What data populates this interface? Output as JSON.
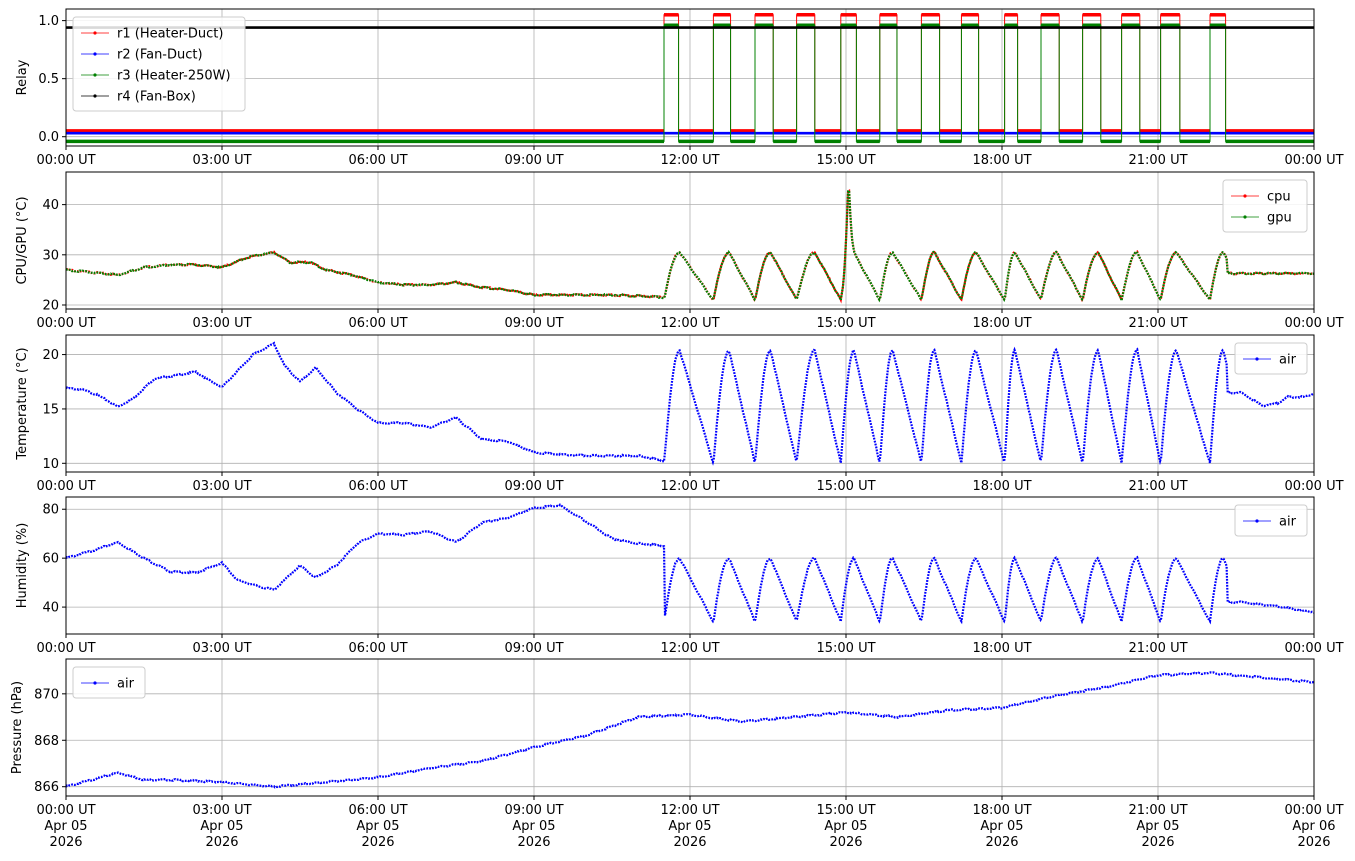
{
  "chart_data": [
    {
      "type": "line",
      "ylabel": "Relay",
      "ylim": [
        -0.08,
        1.1
      ],
      "yticks": [
        0.0,
        0.5,
        1.0
      ],
      "ytick_labels": [
        "0.0",
        "0.5",
        "1.0"
      ],
      "grid": true,
      "legend_position": "upper-left",
      "x_ticks": [
        "00:00 UT",
        "03:00 UT",
        "06:00 UT",
        "09:00 UT",
        "12:00 UT",
        "15:00 UT",
        "18:00 UT",
        "21:00 UT",
        "00:00 UT"
      ],
      "cycles_on_hours": [
        [
          11.5,
          11.78
        ],
        [
          12.45,
          12.78
        ],
        [
          13.25,
          13.6
        ],
        [
          14.05,
          14.4
        ],
        [
          14.9,
          15.2
        ],
        [
          15.65,
          15.98
        ],
        [
          16.45,
          16.8
        ],
        [
          17.22,
          17.55
        ],
        [
          18.05,
          18.3
        ],
        [
          18.75,
          19.1
        ],
        [
          19.55,
          19.9
        ],
        [
          20.3,
          20.65
        ],
        [
          21.05,
          21.42
        ],
        [
          22.0,
          22.3
        ]
      ],
      "series": [
        {
          "name": "r1 (Heater-Duct)",
          "color": "#ff0000",
          "off_value": 0.05,
          "on_value": 1.05,
          "switching": true
        },
        {
          "name": "r2 (Fan-Duct)",
          "color": "#0000ff",
          "off_value": 0.03,
          "on_value": 0.03,
          "switching": false
        },
        {
          "name": "r3 (Heater-250W)",
          "color": "#008000",
          "off_value": -0.04,
          "on_value": 0.96,
          "switching": true
        },
        {
          "name": "r4 (Fan-Box)",
          "color": "#000000",
          "off_value": 0.94,
          "on_value": 0.94,
          "switching": false
        }
      ]
    },
    {
      "type": "line",
      "ylabel": "CPU/GPU (°C)",
      "ylim": [
        19.2,
        46.5
      ],
      "yticks": [
        20,
        30,
        40
      ],
      "ytick_labels": [
        "20",
        "30",
        "40"
      ],
      "grid": true,
      "legend_position": "upper-right",
      "x_ticks": [
        "00:00 UT",
        "03:00 UT",
        "06:00 UT",
        "09:00 UT",
        "12:00 UT",
        "15:00 UT",
        "18:00 UT",
        "21:00 UT",
        "00:00 UT"
      ],
      "x_hours": [
        0,
        0.5,
        1.0,
        1.5,
        2.0,
        2.5,
        3.0,
        3.5,
        4.0,
        4.3,
        4.7,
        5.0,
        5.5,
        6.0,
        6.5,
        7.0,
        7.5,
        8.0,
        8.5,
        9.0,
        9.5,
        10.0,
        10.5,
        11.0,
        11.5
      ],
      "series": [
        {
          "name": "cpu",
          "color": "#ff0000",
          "values": [
            27.0,
            26.5,
            26.0,
            27.5,
            28.0,
            28.0,
            27.5,
            29.5,
            30.5,
            28.5,
            28.5,
            27.0,
            26.0,
            24.5,
            24.0,
            24.0,
            24.5,
            23.5,
            23.0,
            22.0,
            22.0,
            22.0,
            22.0,
            21.8,
            21.5
          ]
        },
        {
          "name": "gpu",
          "color": "#008000",
          "values": [
            27.0,
            26.5,
            26.0,
            27.5,
            28.0,
            28.0,
            27.5,
            29.5,
            30.5,
            28.5,
            28.5,
            27.0,
            26.0,
            24.5,
            24.0,
            24.0,
            24.5,
            23.5,
            23.0,
            22.0,
            22.0,
            22.0,
            22.0,
            21.8,
            21.5
          ]
        }
      ],
      "cycle_peak_hours": [
        11.8,
        12.75,
        13.55,
        14.4,
        15.15,
        15.9,
        16.7,
        17.5,
        18.25,
        19.05,
        19.85,
        20.6,
        21.35,
        22.25
      ],
      "cycle_trough_hours": [
        11.5,
        12.45,
        13.25,
        14.05,
        14.9,
        15.65,
        16.45,
        17.22,
        18.05,
        18.75,
        19.55,
        20.3,
        21.05,
        22.0
      ],
      "cycle_peak_value": 30.5,
      "cycle_trough_value": 21.0,
      "spike_hour": 15.05,
      "spike_value": 45.5,
      "tail_value": 26.3
    },
    {
      "type": "scatter",
      "ylabel": "Temperature (°C)",
      "ylim": [
        9.2,
        21.8
      ],
      "yticks": [
        10,
        15,
        20
      ],
      "ytick_labels": [
        "10",
        "15",
        "20"
      ],
      "grid": true,
      "legend_position": "upper-right",
      "x_ticks": [
        "00:00 UT",
        "03:00 UT",
        "06:00 UT",
        "09:00 UT",
        "12:00 UT",
        "15:00 UT",
        "18:00 UT",
        "21:00 UT",
        "00:00 UT"
      ],
      "x_hours": [
        0,
        0.3,
        0.6,
        1.0,
        1.3,
        1.7,
        2.0,
        2.5,
        2.8,
        3.0,
        3.3,
        3.6,
        4.0,
        4.2,
        4.5,
        4.8,
        5.2,
        5.6,
        6.0,
        6.5,
        7.0,
        7.5,
        8.0,
        8.5,
        9.0,
        9.5,
        10.0,
        10.5,
        11.0,
        11.5
      ],
      "series": [
        {
          "name": "air",
          "color": "#0000ff",
          "values": [
            16.9,
            16.8,
            16.3,
            15.2,
            16.0,
            17.8,
            18.0,
            18.4,
            17.5,
            17.0,
            18.5,
            20.0,
            21.0,
            19.0,
            17.5,
            18.8,
            16.5,
            15.0,
            13.7,
            13.7,
            13.3,
            14.2,
            12.2,
            12.0,
            11.0,
            10.8,
            10.7,
            10.7,
            10.7,
            10.2
          ]
        }
      ],
      "cycle_peak_hours": [
        11.8,
        12.75,
        13.55,
        14.4,
        15.15,
        15.9,
        16.7,
        17.5,
        18.25,
        19.05,
        19.85,
        20.6,
        21.35,
        22.25
      ],
      "cycle_trough_hours": [
        11.5,
        12.45,
        13.25,
        14.05,
        14.9,
        15.65,
        16.45,
        17.22,
        18.05,
        18.75,
        19.55,
        20.3,
        21.05,
        22.0
      ],
      "cycle_peak_value": 20.4,
      "cycle_trough_value": 10.0,
      "tail_values": [
        16.5,
        15.3,
        15.5,
        16.1,
        16.1,
        16.4
      ],
      "tail_hours": [
        22.6,
        23.0,
        23.3,
        23.5,
        23.8,
        24.0
      ]
    },
    {
      "type": "scatter",
      "ylabel": "Humidity (%)",
      "ylim": [
        29,
        85
      ],
      "yticks": [
        40,
        60,
        80
      ],
      "ytick_labels": [
        "40",
        "60",
        "80"
      ],
      "grid": true,
      "legend_position": "upper-right",
      "x_ticks": [
        "00:00 UT",
        "03:00 UT",
        "06:00 UT",
        "09:00 UT",
        "12:00 UT",
        "15:00 UT",
        "18:00 UT",
        "21:00 UT",
        "00:00 UT"
      ],
      "x_hours": [
        0,
        0.5,
        1.0,
        1.5,
        2.0,
        2.5,
        3.0,
        3.3,
        3.7,
        4.0,
        4.5,
        4.8,
        5.2,
        5.6,
        6.0,
        6.5,
        7.0,
        7.5,
        8.0,
        8.5,
        9.0,
        9.5,
        10.0,
        10.5,
        11.0,
        11.5
      ],
      "series": [
        {
          "name": "air",
          "color": "#0000ff",
          "values": [
            60.0,
            63.0,
            66.5,
            60.0,
            54.5,
            54.0,
            58.0,
            51.0,
            48.5,
            47.0,
            57.0,
            52.0,
            57.0,
            66.0,
            70.0,
            69.5,
            71.0,
            66.5,
            74.5,
            76.5,
            80.5,
            81.5,
            75.0,
            68.0,
            66.0,
            65.0
          ]
        }
      ],
      "cycle_peak_hours": [
        11.8,
        12.75,
        13.55,
        14.4,
        15.15,
        15.9,
        16.7,
        17.5,
        18.25,
        19.05,
        19.85,
        20.6,
        21.35,
        22.25
      ],
      "cycle_trough_hours": [
        11.5,
        12.45,
        13.25,
        14.05,
        14.9,
        15.65,
        16.45,
        17.22,
        18.05,
        18.75,
        19.55,
        20.3,
        21.05,
        22.0
      ],
      "cycle_peak_value": 60.0,
      "cycle_trough_value": 34.0,
      "tail_values": [
        42.0,
        41.0,
        40.0,
        38.5,
        38.0
      ],
      "tail_hours": [
        22.6,
        23.0,
        23.4,
        23.8,
        24.0
      ]
    },
    {
      "type": "scatter",
      "ylabel": "Pressure (hPa)",
      "ylim": [
        865.6,
        871.5
      ],
      "yticks": [
        866,
        868,
        870
      ],
      "ytick_labels": [
        "866",
        "868",
        "870"
      ],
      "grid": true,
      "legend_position": "upper-left",
      "x_ticks": [
        "00:00 UT",
        "03:00 UT",
        "06:00 UT",
        "09:00 UT",
        "12:00 UT",
        "15:00 UT",
        "18:00 UT",
        "21:00 UT",
        "00:00 UT"
      ],
      "x_date_labels": [
        "Apr 05",
        "Apr 05",
        "Apr 05",
        "Apr 05",
        "Apr 05",
        "Apr 05",
        "Apr 05",
        "Apr 05",
        "Apr 06"
      ],
      "x_year_labels": [
        "2026",
        "2026",
        "2026",
        "2026",
        "2026",
        "2026",
        "2026",
        "2026",
        "2026"
      ],
      "x_hours": [
        0,
        0.5,
        1.0,
        1.5,
        2.0,
        3.0,
        4.0,
        5.0,
        6.0,
        7.0,
        8.0,
        9.0,
        10.0,
        11.0,
        12.0,
        13.0,
        14.0,
        15.0,
        16.0,
        17.0,
        18.0,
        19.0,
        20.0,
        21.0,
        22.0,
        23.0,
        24.0
      ],
      "series": [
        {
          "name": "air",
          "color": "#0000ff",
          "values": [
            866.0,
            866.3,
            866.6,
            866.3,
            866.3,
            866.2,
            866.0,
            866.2,
            866.4,
            866.8,
            867.1,
            867.7,
            868.2,
            869.0,
            869.1,
            868.8,
            869.0,
            869.2,
            869.0,
            869.3,
            869.4,
            869.9,
            870.3,
            870.8,
            870.9,
            870.7,
            870.5
          ]
        }
      ]
    }
  ]
}
